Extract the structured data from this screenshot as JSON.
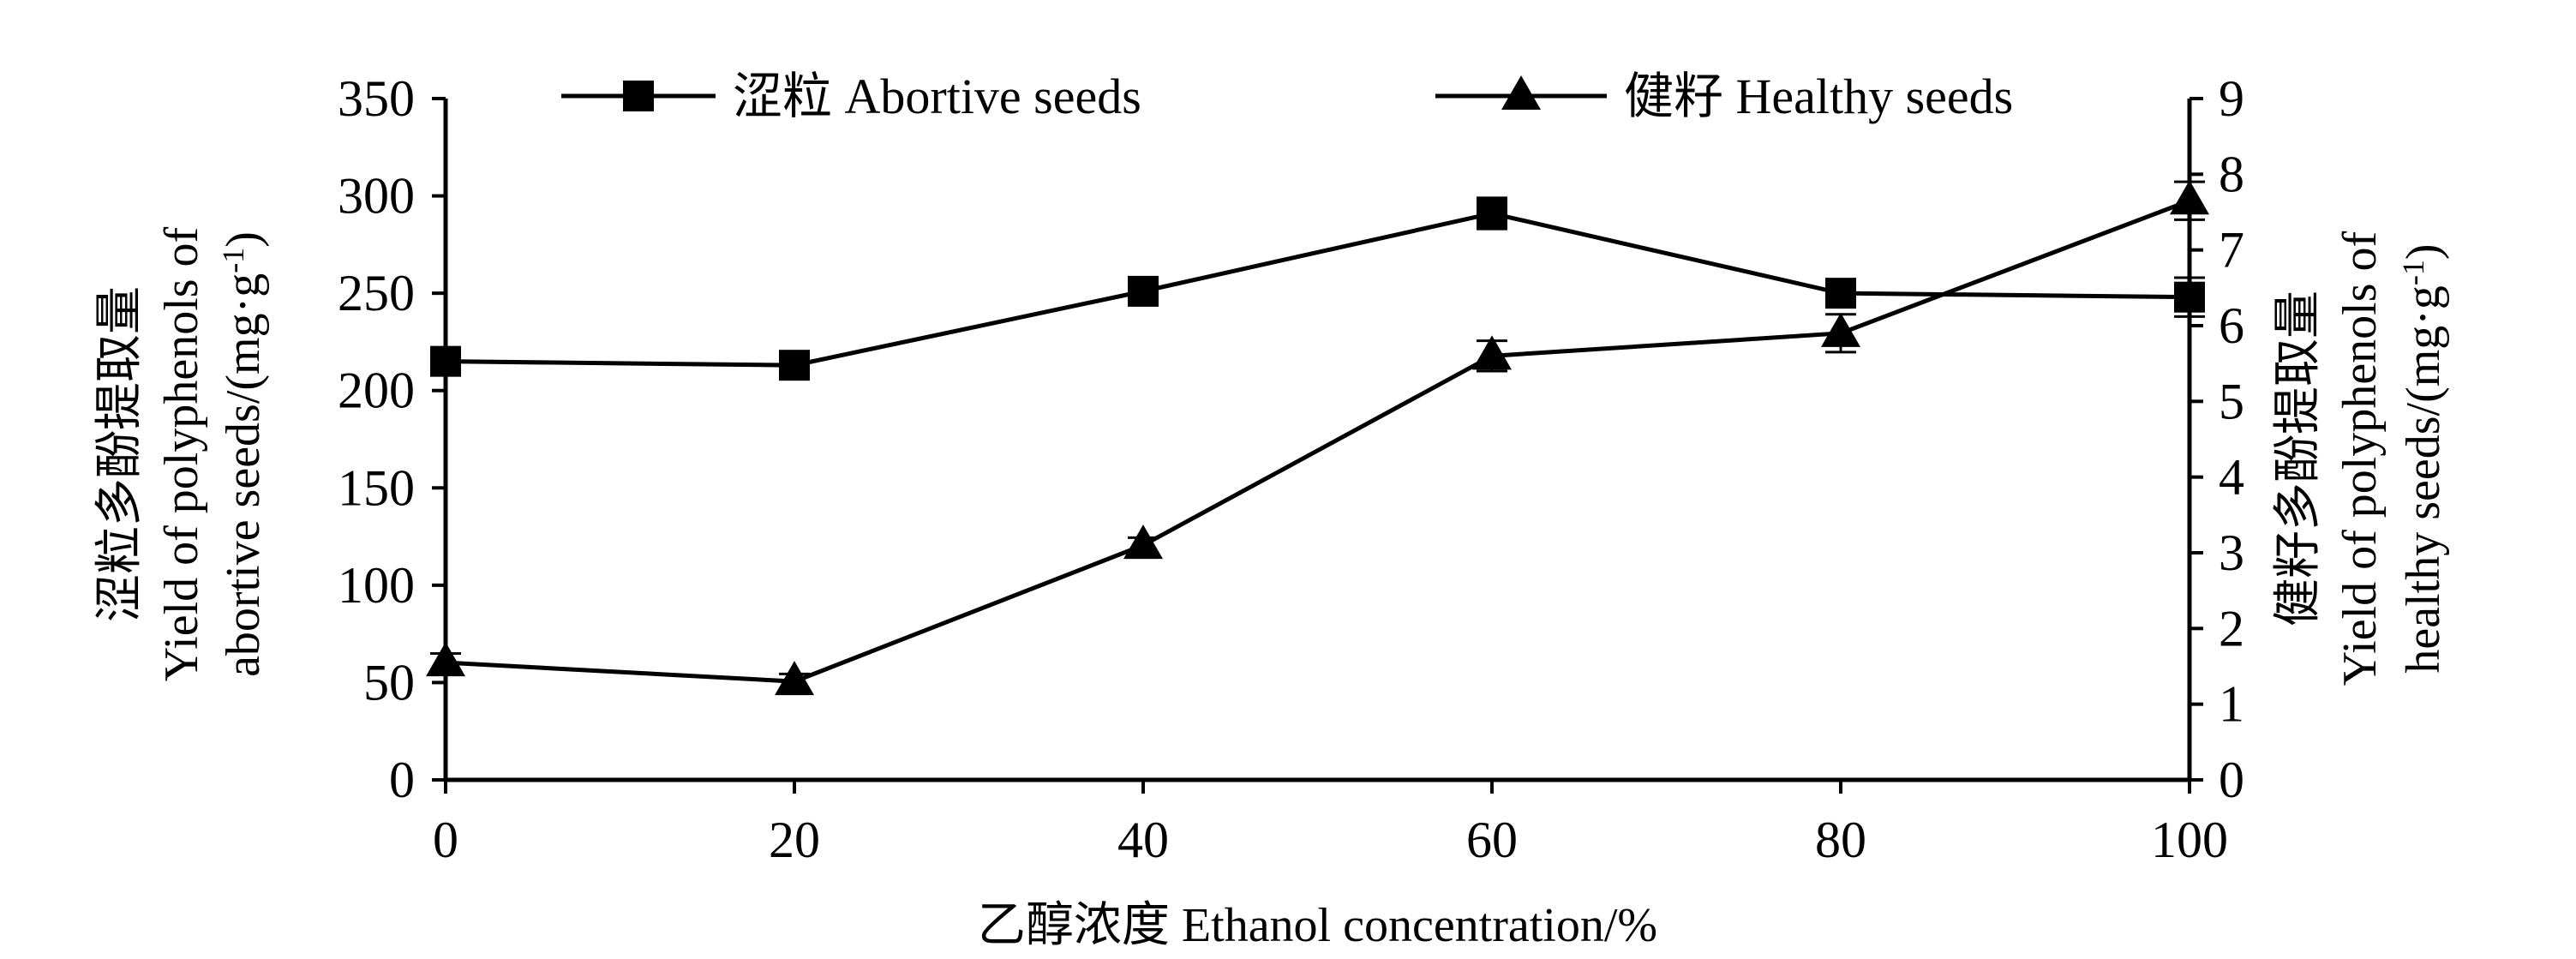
{
  "chart_data": {
    "type": "line",
    "x": [
      0,
      20,
      40,
      60,
      80,
      100
    ],
    "xlim": [
      0,
      100
    ],
    "xticks": [
      "0",
      "20",
      "40",
      "60",
      "80",
      "100"
    ],
    "xlabel": "乙醇浓度 Ethanol concentration/%",
    "y_left": {
      "range": [
        0,
        350
      ],
      "ticks": [
        "0",
        "50",
        "100",
        "150",
        "200",
        "250",
        "300",
        "350"
      ],
      "label_lines": [
        "涩粒多酚提取量",
        "Yield of polyphenols of",
        "abortive seeds/(mg·g",
        "-1",
        ")"
      ]
    },
    "y_right": {
      "range": [
        0,
        9
      ],
      "ticks": [
        "0",
        "1",
        "2",
        "3",
        "4",
        "5",
        "6",
        "7",
        "8",
        "9"
      ],
      "label_lines": [
        "健籽多酚提取量",
        "Yield of polyphenols of",
        "healthy seeds/(mg·g",
        "-1",
        ")"
      ]
    },
    "series": [
      {
        "name": "涩粒 Abortive seeds",
        "axis": "left",
        "marker": "square",
        "values": [
          215,
          213,
          251,
          291,
          250,
          248
        ],
        "errors": [
          5,
          5,
          5,
          8,
          5,
          10
        ]
      },
      {
        "name": "健籽 Healthy seeds",
        "axis": "right",
        "marker": "triangle",
        "values": [
          1.55,
          1.3,
          3.1,
          5.6,
          5.9,
          7.65
        ],
        "errors": [
          0.12,
          0.1,
          0.1,
          0.2,
          0.25,
          0.25
        ]
      }
    ],
    "legend_position": "top"
  }
}
